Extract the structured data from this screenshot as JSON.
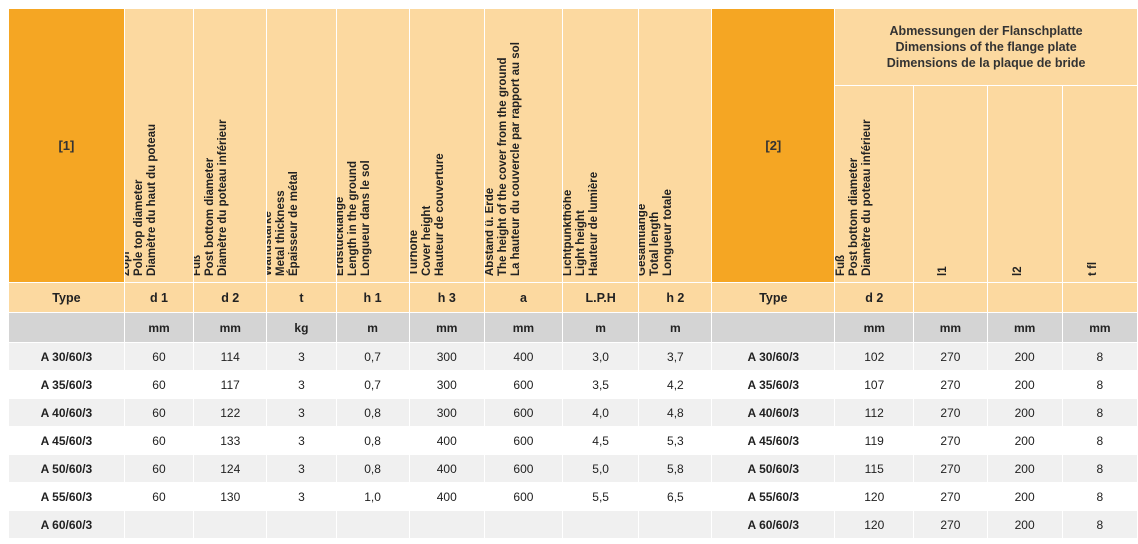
{
  "header": {
    "col1_bracket": "[1]",
    "col2_lines": [
      "Zopf",
      "Pole top diameter",
      "Diamètre du haut du poteau"
    ],
    "col3_lines": [
      "Fuß",
      "Post bottom diameter",
      "Diamètre du poteau inférieur"
    ],
    "col4_lines": [
      "Wandstärke",
      "Metal thickness",
      "Épaisseur de métal"
    ],
    "col5_lines": [
      "Erdstücklänge",
      "Length in the ground",
      "Longueur dans le sol"
    ],
    "col6_lines": [
      "Türhöhe",
      "Cover height",
      "Hauteur de couverture"
    ],
    "col7_lines": [
      "Abstand ü. Erde",
      "The height of the cover from the ground",
      "La hauteur du couvercle par rapport au sol"
    ],
    "col8_lines": [
      "Lichtpunkthöhe",
      "Light height",
      "Hauteur de lumière"
    ],
    "col9_lines": [
      "Gesamtlänge",
      "Total length",
      "Longueur totale"
    ],
    "col10_bracket": "[2]",
    "flange_title_lines": [
      "Abmessungen der Flanschplatte",
      "Dimensions of the flange plate",
      "Dimensions de la plaque de bride"
    ],
    "flange_col1_lines": [
      "Fuß",
      "Post bottom diameter",
      "Diamètre du poteau inférieur"
    ],
    "flange_col2": "l1",
    "flange_col3": "l2",
    "flange_col4": "t fl"
  },
  "symbols": [
    "Type",
    "d 1",
    "d 2",
    "t",
    "h 1",
    "h 3",
    "a",
    "L.P.H",
    "h 2",
    "Type",
    "d 2",
    "",
    "",
    ""
  ],
  "units": [
    "",
    "mm",
    "mm",
    "kg",
    "m",
    "mm",
    "mm",
    "m",
    "m",
    "",
    "mm",
    "mm",
    "mm",
    "mm"
  ],
  "rows": [
    [
      "A 30/60/3",
      "60",
      "114",
      "3",
      "0,7",
      "300",
      "400",
      "3,0",
      "3,7",
      "A 30/60/3",
      "102",
      "270",
      "200",
      "8"
    ],
    [
      "A 35/60/3",
      "60",
      "117",
      "3",
      "0,7",
      "300",
      "600",
      "3,5",
      "4,2",
      "A 35/60/3",
      "107",
      "270",
      "200",
      "8"
    ],
    [
      "A 40/60/3",
      "60",
      "122",
      "3",
      "0,8",
      "300",
      "600",
      "4,0",
      "4,8",
      "A 40/60/3",
      "112",
      "270",
      "200",
      "8"
    ],
    [
      "A 45/60/3",
      "60",
      "133",
      "3",
      "0,8",
      "400",
      "600",
      "4,5",
      "5,3",
      "A 45/60/3",
      "119",
      "270",
      "200",
      "8"
    ],
    [
      "A 50/60/3",
      "60",
      "124",
      "3",
      "0,8",
      "400",
      "600",
      "5,0",
      "5,8",
      "A 50/60/3",
      "115",
      "270",
      "200",
      "8"
    ],
    [
      "A 55/60/3",
      "60",
      "130",
      "3",
      "1,0",
      "400",
      "600",
      "5,5",
      "6,5",
      "A 55/60/3",
      "120",
      "270",
      "200",
      "8"
    ],
    [
      "A 60/60/3",
      "",
      "",
      "",
      "",
      "",
      "",
      "",
      "",
      "A 60/60/3",
      "120",
      "270",
      "200",
      "8"
    ]
  ],
  "colors": {
    "orange": "#f5a623",
    "peach": "#fcd9a0",
    "grey": "#d4d4d4",
    "stripe": "#f0f0f0"
  }
}
